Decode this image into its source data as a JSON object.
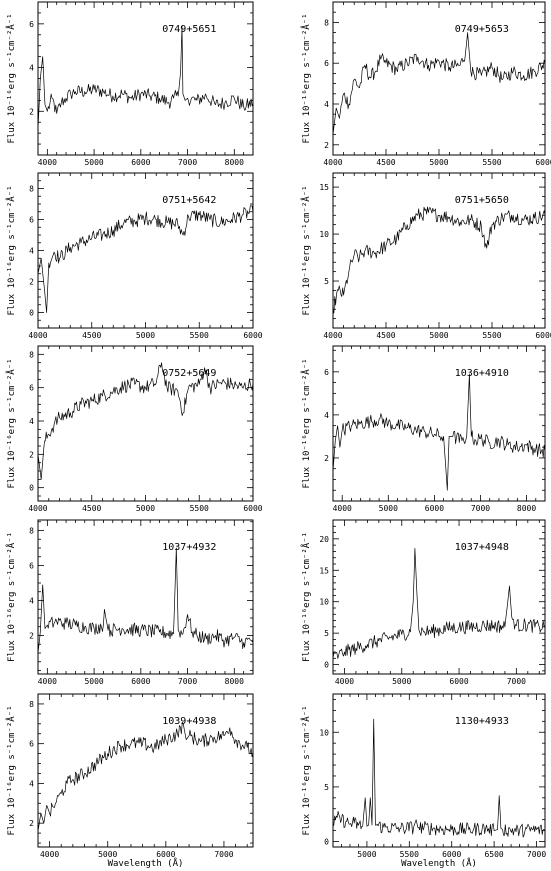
{
  "figure": {
    "ylabel": "Flux 10⁻¹⁶erg s⁻¹cm⁻²Å⁻¹",
    "xlabel": "Wavelength (Å)"
  },
  "chart_data": [
    {
      "type": "line",
      "title": "0749+5651",
      "xlim": [
        3800,
        8400
      ],
      "ylim": [
        0,
        7
      ],
      "xticks": [
        4000,
        5000,
        6000,
        7000,
        8000
      ],
      "yticks": [
        2,
        4,
        6
      ],
      "x": [
        3800,
        3850,
        3900,
        3950,
        4000,
        4100,
        4200,
        4300,
        4400,
        4500,
        4600,
        4800,
        5000,
        5200,
        5400,
        5600,
        5800,
        6000,
        6200,
        6400,
        6600,
        6700,
        6800,
        6850,
        6880,
        6900,
        6950,
        7000,
        7200,
        7400,
        7600,
        7800,
        8000,
        8200,
        8400
      ],
      "y": [
        1.2,
        3.5,
        4.5,
        2.3,
        2.0,
        2.6,
        1.9,
        2.4,
        2.6,
        2.8,
        2.9,
        2.9,
        3.0,
        2.9,
        2.7,
        2.8,
        2.6,
        2.8,
        2.7,
        2.6,
        2.4,
        2.6,
        2.7,
        3.8,
        5.9,
        2.8,
        2.5,
        2.6,
        2.5,
        2.7,
        2.3,
        2.4,
        2.6,
        2.2,
        2.4
      ]
    },
    {
      "type": "line",
      "title": "0749+5653",
      "xlim": [
        4000,
        6000
      ],
      "ylim": [
        1.5,
        9
      ],
      "xticks": [
        4000,
        4500,
        5000,
        5500,
        6000
      ],
      "yticks": [
        2,
        4,
        6,
        8
      ],
      "x": [
        4000,
        4030,
        4060,
        4100,
        4150,
        4200,
        4250,
        4300,
        4350,
        4400,
        4450,
        4500,
        4600,
        4700,
        4800,
        4900,
        5000,
        5100,
        5200,
        5250,
        5270,
        5300,
        5400,
        5500,
        5600,
        5700,
        5800,
        5900,
        6000
      ],
      "y": [
        2.5,
        3.8,
        3.3,
        4.5,
        4.0,
        5.2,
        4.8,
        5.9,
        5.3,
        5.6,
        6.2,
        6.0,
        5.7,
        6.0,
        6.3,
        5.9,
        6.1,
        5.8,
        5.9,
        6.5,
        7.5,
        5.6,
        5.4,
        5.8,
        5.2,
        5.6,
        5.4,
        5.6,
        6.0
      ]
    },
    {
      "type": "line",
      "title": "0751+5642",
      "xlim": [
        4000,
        6000
      ],
      "ylim": [
        -1,
        9
      ],
      "xticks": [
        4000,
        4500,
        5000,
        5500,
        6000
      ],
      "yticks": [
        0,
        2,
        4,
        6,
        8
      ],
      "x": [
        4000,
        4030,
        4060,
        4080,
        4100,
        4150,
        4200,
        4300,
        4400,
        4500,
        4600,
        4700,
        4800,
        4900,
        5000,
        5100,
        5200,
        5300,
        5350,
        5400,
        5500,
        5600,
        5700,
        5800,
        5900,
        6000
      ],
      "y": [
        2.5,
        3.5,
        1.5,
        0.0,
        3.2,
        3.9,
        3.5,
        4.2,
        4.5,
        4.8,
        5.0,
        5.3,
        5.8,
        5.9,
        6.1,
        6.0,
        5.8,
        5.7,
        5.0,
        6.2,
        6.3,
        6.0,
        5.8,
        6.0,
        6.3,
        6.5
      ]
    },
    {
      "type": "line",
      "title": "0751+5650",
      "xlim": [
        4000,
        6000
      ],
      "ylim": [
        0,
        16.5
      ],
      "xticks": [
        4000,
        4500,
        5000,
        5500,
        6000
      ],
      "yticks": [
        5,
        10,
        15
      ],
      "x": [
        4000,
        4050,
        4100,
        4150,
        4200,
        4250,
        4300,
        4400,
        4500,
        4600,
        4700,
        4800,
        4900,
        5000,
        5100,
        5200,
        5300,
        5400,
        5450,
        5500,
        5600,
        5700,
        5800,
        5900,
        6000
      ],
      "y": [
        2.0,
        4.0,
        3.5,
        6.0,
        7.8,
        7.5,
        8.2,
        8.0,
        8.8,
        9.5,
        11.0,
        12.0,
        12.3,
        12.0,
        11.8,
        11.3,
        11.5,
        10.8,
        8.5,
        11.0,
        11.8,
        12.0,
        11.5,
        11.7,
        12.0
      ]
    },
    {
      "type": "line",
      "title": "0752+5649",
      "xlim": [
        4000,
        6000
      ],
      "ylim": [
        -0.8,
        8.5
      ],
      "xticks": [
        4000,
        4500,
        5000,
        5500,
        6000
      ],
      "yticks": [
        0,
        2,
        4,
        6,
        8
      ],
      "x": [
        4000,
        4030,
        4060,
        4100,
        4150,
        4200,
        4300,
        4400,
        4500,
        4600,
        4700,
        4800,
        4900,
        5000,
        5100,
        5150,
        5200,
        5300,
        5350,
        5400,
        5500,
        5550,
        5600,
        5700,
        5800,
        5900,
        6000
      ],
      "y": [
        2.0,
        0.5,
        2.8,
        3.2,
        3.8,
        4.2,
        4.5,
        5.0,
        5.2,
        5.5,
        5.8,
        6.1,
        6.2,
        6.0,
        6.3,
        7.5,
        6.0,
        5.8,
        4.5,
        6.0,
        6.2,
        7.2,
        6.0,
        6.3,
        6.2,
        6.0,
        6.3
      ]
    },
    {
      "type": "line",
      "title": "1036+4910",
      "xlim": [
        3800,
        8400
      ],
      "ylim": [
        0,
        7.2
      ],
      "xticks": [
        4000,
        5000,
        6000,
        7000,
        8000
      ],
      "yticks": [
        2,
        4,
        6
      ],
      "x": [
        3800,
        3850,
        3900,
        3950,
        4000,
        4200,
        4400,
        4600,
        4800,
        5000,
        5200,
        5400,
        5600,
        5800,
        6000,
        6200,
        6280,
        6320,
        6400,
        6600,
        6700,
        6760,
        6800,
        6900,
        7000,
        7200,
        7400,
        7600,
        7800,
        8000,
        8200,
        8400
      ],
      "y": [
        1.4,
        2.8,
        3.5,
        2.5,
        3.3,
        3.5,
        3.6,
        3.7,
        3.8,
        3.6,
        3.5,
        3.4,
        3.3,
        3.2,
        3.1,
        3.0,
        0.5,
        3.0,
        3.0,
        2.8,
        3.0,
        5.9,
        3.0,
        2.8,
        2.9,
        2.7,
        2.8,
        2.6,
        2.5,
        2.6,
        2.4,
        2.3
      ]
    },
    {
      "type": "line",
      "title": "1037+4932",
      "xlim": [
        3800,
        8400
      ],
      "ylim": [
        -0.2,
        8.6
      ],
      "xticks": [
        4000,
        5000,
        6000,
        7000,
        8000
      ],
      "yticks": [
        2,
        4,
        6,
        8
      ],
      "x": [
        3800,
        3850,
        3900,
        3950,
        4000,
        4200,
        4400,
        4600,
        4800,
        5000,
        5200,
        5220,
        5300,
        5600,
        6000,
        6400,
        6700,
        6760,
        6800,
        6900,
        7000,
        7100,
        7200,
        7400,
        7600,
        7800,
        8000,
        8200,
        8400
      ],
      "y": [
        1.0,
        2.2,
        4.9,
        2.4,
        2.6,
        2.8,
        2.7,
        2.6,
        2.5,
        2.4,
        2.6,
        3.5,
        2.3,
        2.4,
        2.3,
        2.2,
        2.1,
        7.0,
        2.3,
        2.1,
        3.2,
        2.2,
        2.0,
        1.8,
        2.0,
        1.7,
        1.9,
        1.6,
        1.8
      ]
    },
    {
      "type": "line",
      "title": "1037+4948",
      "xlim": [
        3800,
        7500
      ],
      "ylim": [
        -1.5,
        23
      ],
      "xticks": [
        4000,
        5000,
        6000,
        7000
      ],
      "yticks": [
        0,
        5,
        10,
        15,
        20
      ],
      "x": [
        3800,
        3900,
        4000,
        4200,
        4400,
        4600,
        4800,
        5000,
        5150,
        5200,
        5230,
        5260,
        5300,
        5400,
        5600,
        5800,
        6000,
        6200,
        6400,
        6600,
        6800,
        6850,
        6880,
        6920,
        7000,
        7200,
        7400,
        7500
      ],
      "y": [
        1.0,
        1.5,
        2.0,
        2.6,
        3.2,
        3.8,
        4.3,
        4.8,
        5.2,
        10.0,
        18.5,
        12.0,
        5.5,
        5.2,
        5.4,
        5.8,
        5.9,
        6.0,
        6.2,
        6.2,
        6.0,
        10.0,
        12.5,
        7.5,
        6.2,
        6.3,
        6.0,
        6.2
      ]
    },
    {
      "type": "line",
      "title": "1039+4938",
      "xlim": [
        3800,
        7500
      ],
      "ylim": [
        0.8,
        8.5
      ],
      "xticks": [
        4000,
        5000,
        6000,
        7000
      ],
      "yticks": [
        2,
        4,
        6,
        8
      ],
      "x": [
        3800,
        3850,
        3900,
        3950,
        4000,
        4100,
        4200,
        4300,
        4400,
        4600,
        4800,
        5000,
        5200,
        5400,
        5600,
        5800,
        6000,
        6200,
        6300,
        6350,
        6400,
        6600,
        6800,
        7000,
        7100,
        7200,
        7400,
        7500
      ],
      "y": [
        1.6,
        2.5,
        2.0,
        2.9,
        2.5,
        3.0,
        3.5,
        4.0,
        4.2,
        4.5,
        5.0,
        5.5,
        5.9,
        6.0,
        6.0,
        5.8,
        6.2,
        6.5,
        7.0,
        6.2,
        6.4,
        6.1,
        6.3,
        6.4,
        6.8,
        6.2,
        5.8,
        5.5
      ]
    },
    {
      "type": "line",
      "title": "1130+4933",
      "xlim": [
        4600,
        7100
      ],
      "ylim": [
        -0.5,
        13.5
      ],
      "xticks": [
        5000,
        5500,
        6000,
        6500,
        7000
      ],
      "yticks": [
        0,
        5,
        10
      ],
      "x": [
        4600,
        4650,
        4700,
        4750,
        4800,
        4850,
        4900,
        4950,
        4980,
        5000,
        5020,
        5040,
        5060,
        5080,
        5100,
        5200,
        5400,
        5550,
        5580,
        5600,
        5800,
        6000,
        6200,
        6400,
        6500,
        6540,
        6560,
        6580,
        6600,
        6800,
        7000,
        7100
      ],
      "y": [
        1.5,
        2.2,
        2.0,
        1.8,
        1.6,
        1.7,
        1.5,
        1.4,
        4.0,
        1.4,
        1.5,
        4.0,
        1.5,
        11.2,
        1.5,
        1.3,
        1.2,
        1.3,
        2.0,
        1.3,
        1.2,
        1.1,
        1.1,
        1.2,
        1.0,
        1.1,
        4.2,
        1.2,
        1.1,
        1.0,
        1.1,
        1.0
      ]
    }
  ]
}
